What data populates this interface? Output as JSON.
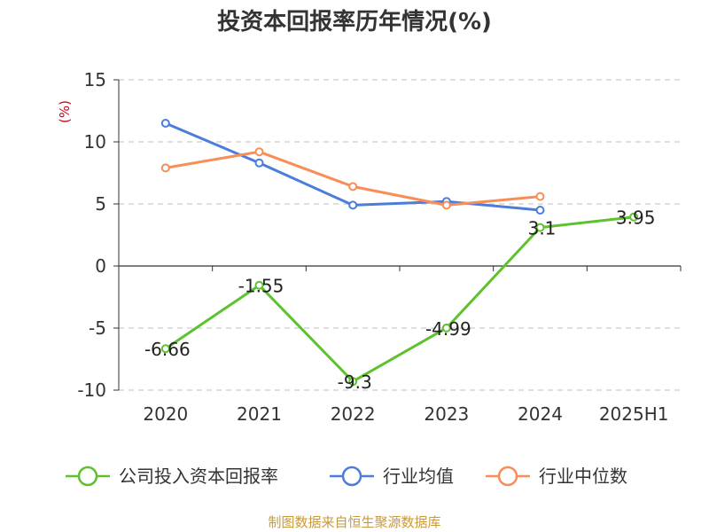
{
  "chart_data": {
    "type": "line",
    "title": "投资本回报率历年情况(%)",
    "ylabel": "(%)",
    "xlabel": "",
    "categories": [
      "2020",
      "2021",
      "2022",
      "2023",
      "2024",
      "2025H1"
    ],
    "ylim": [
      -10,
      15
    ],
    "yticks": [
      15,
      10,
      5,
      0,
      -5,
      -10
    ],
    "grid": true,
    "legend_position": "bottom",
    "series": [
      {
        "name": "公司投入资本回报率",
        "values": [
          -6.66,
          -1.55,
          -9.3,
          -4.99,
          3.1,
          3.95
        ],
        "labels": [
          "-6.66",
          "-1.55",
          "-9.3",
          "-4.99",
          "3.1",
          "3.95"
        ],
        "color": "#5ec12e"
      },
      {
        "name": "行业均值",
        "values": [
          11.5,
          8.3,
          4.9,
          5.2,
          4.5,
          null
        ],
        "color": "#4c7ddb"
      },
      {
        "name": "行业中位数",
        "values": [
          7.9,
          9.2,
          6.4,
          4.9,
          5.6,
          null
        ],
        "color": "#f88d57"
      }
    ],
    "source": "制图数据来自恒生聚源数据库"
  }
}
